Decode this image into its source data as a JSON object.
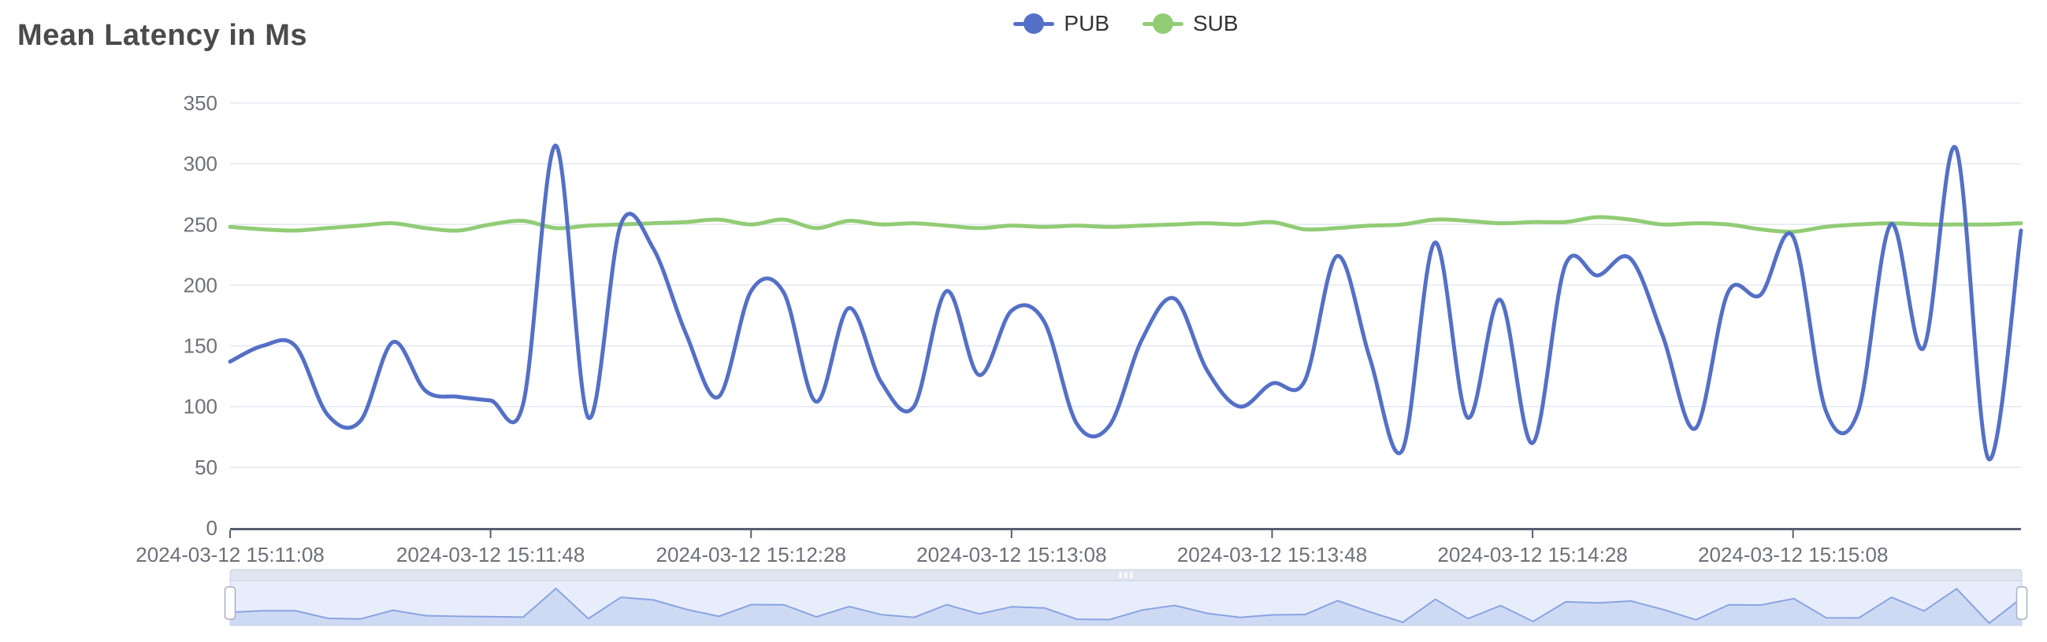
{
  "title": "Mean Latency in Ms",
  "legend": {
    "items": [
      {
        "label": "PUB",
        "color": "#5470c6"
      },
      {
        "label": "SUB",
        "color": "#91cc75"
      }
    ]
  },
  "colors": {
    "pub_line": "#5470c6",
    "sub_line": "#91cc75",
    "grid_line": "#e4e8f3",
    "axis_line": "#576070",
    "axis_label": "#6e7079",
    "title_text": "#4b4b4b",
    "slider_background": "#e8edfb",
    "slider_area_fill": "#c7d4f2",
    "slider_line": "#8aa4e2",
    "slider_move_strip": "#e0e5f1",
    "slider_border": "#c9d0e2",
    "slider_handle_fill": "#ffffff",
    "slider_handle_border": "#a9afc0"
  },
  "chart_data": {
    "type": "line",
    "smooth": true,
    "grid": true,
    "legend_position": "top-center",
    "title": "Mean Latency in Ms",
    "xlabel": "",
    "ylabel": "",
    "ylim": [
      0,
      350
    ],
    "y_ticks": [
      0,
      50,
      100,
      150,
      200,
      250,
      300,
      350
    ],
    "x_tick_every": 8,
    "x_tick_labels": [
      "2024-03-12 15:11:08",
      "2024-03-12 15:11:48",
      "2024-03-12 15:12:28",
      "2024-03-12 15:13:08",
      "2024-03-12 15:13:48",
      "2024-03-12 15:14:28",
      "2024-03-12 15:15:08"
    ],
    "x": [
      "15:11:08",
      "15:11:13",
      "15:11:18",
      "15:11:23",
      "15:11:28",
      "15:11:33",
      "15:11:38",
      "15:11:43",
      "15:11:48",
      "15:11:53",
      "15:11:58",
      "15:12:03",
      "15:12:08",
      "15:12:13",
      "15:12:18",
      "15:12:23",
      "15:12:28",
      "15:12:33",
      "15:12:38",
      "15:12:43",
      "15:12:48",
      "15:12:53",
      "15:12:58",
      "15:13:03",
      "15:13:08",
      "15:13:13",
      "15:13:18",
      "15:13:23",
      "15:13:28",
      "15:13:33",
      "15:13:38",
      "15:13:43",
      "15:13:48",
      "15:13:53",
      "15:13:58",
      "15:14:03",
      "15:14:08",
      "15:14:13",
      "15:14:18",
      "15:14:23",
      "15:14:28",
      "15:14:33",
      "15:14:38",
      "15:14:43",
      "15:14:48",
      "15:14:53",
      "15:14:58",
      "15:15:03",
      "15:15:08",
      "15:15:13",
      "15:15:18",
      "15:15:23",
      "15:15:28",
      "15:15:33",
      "15:15:38",
      "15:15:43"
    ],
    "series": [
      {
        "name": "PUB",
        "color": "#5470c6",
        "values": [
          137,
          150,
          150,
          93,
          88,
          153,
          113,
          108,
          105,
          102,
          315,
          91,
          250,
          230,
          160,
          108,
          195,
          194,
          104,
          181,
          120,
          100,
          195,
          126,
          179,
          170,
          86,
          84,
          155,
          189,
          130,
          100,
          119,
          121,
          224,
          140,
          64,
          235,
          91,
          188,
          70,
          216,
          208,
          222,
          158,
          82,
          194,
          192,
          240,
          97,
          96,
          250,
          148,
          313,
          57,
          245
        ]
      },
      {
        "name": "SUB",
        "color": "#91cc75",
        "values": [
          248,
          246,
          245,
          247,
          249,
          251,
          247,
          245,
          250,
          253,
          247,
          249,
          250,
          251,
          252,
          254,
          250,
          254,
          247,
          253,
          250,
          251,
          249,
          247,
          249,
          248,
          249,
          248,
          249,
          250,
          251,
          250,
          252,
          246,
          247,
          249,
          250,
          254,
          253,
          251,
          252,
          252,
          256,
          254,
          250,
          251,
          250,
          246,
          244,
          248,
          250,
          251,
          250,
          250,
          250,
          251
        ]
      }
    ],
    "datazoom": {
      "enabled": true,
      "preview_series": "PUB",
      "range_start_percent": 0,
      "range_end_percent": 100
    }
  }
}
